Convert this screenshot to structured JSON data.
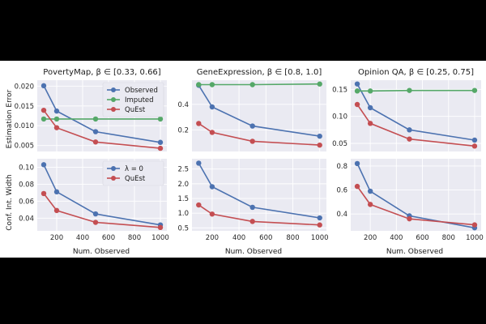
{
  "colors": {
    "background": "#eaeaf2",
    "grid": "#ffffff",
    "blue": "#4c72b0",
    "green": "#55a868",
    "red": "#c44e52"
  },
  "labels": {
    "ylabel_top": "Estimation Error",
    "ylabel_bottom": "Conf. Int. Width",
    "xlabel": "Num. Observed"
  },
  "chart_data": [
    {
      "type": "line",
      "panel": "top-left",
      "title": "PovertyMap, β ∈ [0.33, 0.66]",
      "x": [
        100,
        200,
        500,
        1000
      ],
      "xlim": [
        50,
        1050
      ],
      "ylim": [
        0.0035,
        0.0215
      ],
      "xticks": [
        "200",
        "400",
        "600",
        "800",
        "1000"
      ],
      "yticks": [
        "0.005",
        "0.010",
        "0.015",
        "0.020"
      ],
      "legend": "top-right",
      "series": [
        {
          "name": "Observed",
          "color": "#4c72b0",
          "values": [
            0.0201,
            0.0137,
            0.0085,
            0.0058
          ]
        },
        {
          "name": "Imputed",
          "color": "#55a868",
          "values": [
            0.0117,
            0.0117,
            0.0117,
            0.0117
          ]
        },
        {
          "name": "QuEst",
          "color": "#c44e52",
          "values": [
            0.0139,
            0.0095,
            0.0059,
            0.0043
          ]
        }
      ]
    },
    {
      "type": "line",
      "panel": "top-middle",
      "title": "GeneExpression, β ∈ [0.8, 1.0]",
      "x": [
        100,
        200,
        500,
        1000
      ],
      "xlim": [
        50,
        1050
      ],
      "ylim": [
        0.03,
        0.59
      ],
      "xticks": [
        "200",
        "400",
        "600",
        "800",
        "1000"
      ],
      "yticks": [
        "0.2",
        "0.4"
      ],
      "series": [
        {
          "name": "Observed",
          "color": "#4c72b0",
          "values": [
            0.55,
            0.38,
            0.23,
            0.15
          ]
        },
        {
          "name": "Imputed",
          "color": "#55a868",
          "values": [
            0.555,
            0.555,
            0.555,
            0.56
          ]
        },
        {
          "name": "QuEst",
          "color": "#c44e52",
          "values": [
            0.25,
            0.18,
            0.11,
            0.08
          ]
        }
      ]
    },
    {
      "type": "line",
      "panel": "top-right",
      "title": "Opinion QA, β ∈ [0.25, 0.75]",
      "x": [
        100,
        200,
        500,
        1000
      ],
      "xlim": [
        50,
        1050
      ],
      "ylim": [
        0.035,
        0.167
      ],
      "xticks": [
        "200",
        "400",
        "600",
        "800",
        "1000"
      ],
      "yticks": [
        "0.05",
        "0.10",
        "0.15"
      ],
      "series": [
        {
          "name": "Observed",
          "color": "#4c72b0",
          "values": [
            0.16,
            0.116,
            0.075,
            0.056
          ]
        },
        {
          "name": "Imputed",
          "color": "#55a868",
          "values": [
            0.147,
            0.147,
            0.148,
            0.148
          ]
        },
        {
          "name": "QuEst",
          "color": "#c44e52",
          "values": [
            0.122,
            0.087,
            0.058,
            0.045
          ]
        }
      ]
    },
    {
      "type": "line",
      "panel": "bottom-left",
      "title": "",
      "x": [
        100,
        200,
        500,
        1000
      ],
      "xlim": [
        50,
        1050
      ],
      "ylim": [
        0.025,
        0.11
      ],
      "xticks": [
        "200",
        "400",
        "600",
        "800",
        "1000"
      ],
      "yticks": [
        "0.04",
        "0.06",
        "0.08",
        "0.10"
      ],
      "legend": "top-right",
      "series": [
        {
          "name": "λ = 0",
          "color": "#4c72b0",
          "values": [
            0.103,
            0.071,
            0.045,
            0.032
          ]
        },
        {
          "name": "QuEst",
          "color": "#c44e52",
          "values": [
            0.069,
            0.049,
            0.035,
            0.029
          ]
        }
      ]
    },
    {
      "type": "line",
      "panel": "bottom-middle",
      "title": "",
      "x": [
        100,
        200,
        500,
        1000
      ],
      "xlim": [
        50,
        1050
      ],
      "ylim": [
        0.4,
        2.85
      ],
      "xticks": [
        "200",
        "400",
        "600",
        "800",
        "1000"
      ],
      "yticks": [
        "0.5",
        "1.0",
        "1.5",
        "2.0",
        "2.5"
      ],
      "series": [
        {
          "name": "λ = 0",
          "color": "#4c72b0",
          "values": [
            2.7,
            1.9,
            1.2,
            0.84
          ]
        },
        {
          "name": "QuEst",
          "color": "#c44e52",
          "values": [
            1.28,
            0.97,
            0.72,
            0.6
          ]
        }
      ]
    },
    {
      "type": "line",
      "panel": "bottom-right",
      "title": "",
      "x": [
        100,
        200,
        500,
        1000
      ],
      "xlim": [
        50,
        1050
      ],
      "ylim": [
        0.26,
        0.86
      ],
      "xticks": [
        "200",
        "400",
        "600",
        "800",
        "1000"
      ],
      "yticks": [
        "0.4",
        "0.6",
        "0.8"
      ],
      "series": [
        {
          "name": "λ = 0",
          "color": "#4c72b0",
          "values": [
            0.82,
            0.59,
            0.385,
            0.285
          ]
        },
        {
          "name": "QuEst",
          "color": "#c44e52",
          "values": [
            0.63,
            0.48,
            0.36,
            0.31
          ]
        }
      ]
    }
  ]
}
